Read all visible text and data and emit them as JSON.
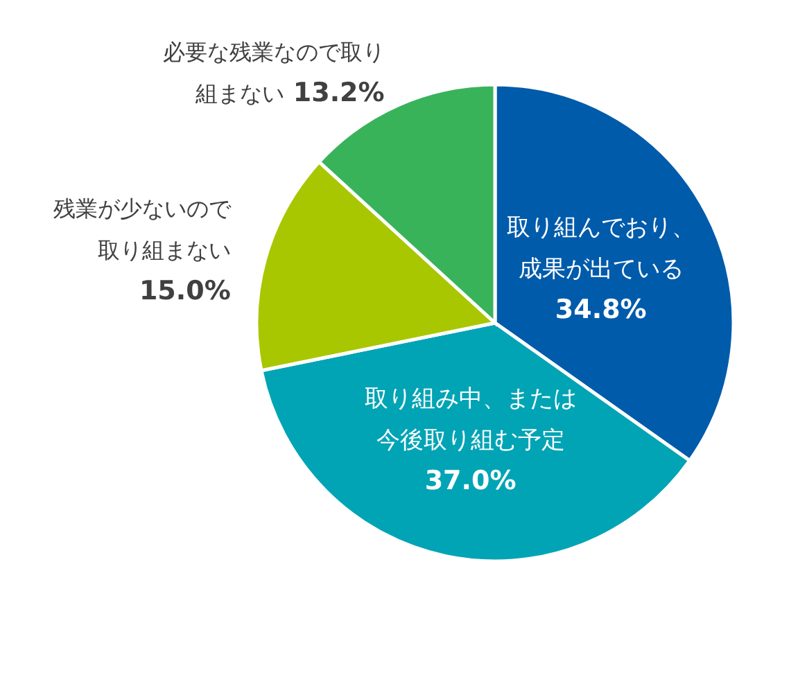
{
  "chart_data": {
    "type": "pie",
    "categories": [
      "取り組んでおり、成果が出ている",
      "取り組み中、または今後取り組む予定",
      "残業が少ないので取り組まない",
      "必要な残業なので取り組まない"
    ],
    "values": [
      34.8,
      37.0,
      15.0,
      13.2
    ],
    "value_labels": [
      "34.8%",
      "37.0%",
      "15.0%",
      "13.2%"
    ],
    "colors": [
      "#005bab",
      "#00a4b5",
      "#a8c700",
      "#39b35a"
    ]
  }
}
